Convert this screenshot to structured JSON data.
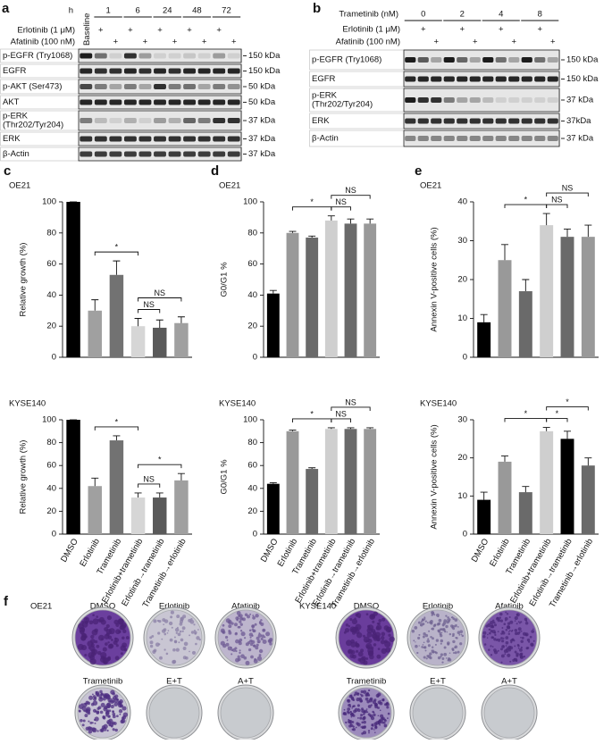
{
  "panel_labels": [
    "a",
    "b",
    "c",
    "d",
    "e",
    "f"
  ],
  "blots": [
    {
      "header": "h",
      "baseline": "Baseline",
      "groups": [
        "1",
        "6",
        "24",
        "48",
        "72"
      ],
      "treatments": [
        {
          "name": "Erlotinib (1 μM)",
          "lanes": [
            null,
            "+",
            null,
            "+",
            null,
            "+",
            null,
            "+",
            null,
            "+",
            null
          ]
        },
        {
          "name": "Afatinib (100 nM)",
          "lanes": [
            null,
            null,
            "+",
            null,
            "+",
            null,
            "+",
            null,
            "+",
            null,
            "+"
          ]
        }
      ],
      "rows": [
        {
          "name": "p-EGFR (Try1068)",
          "size": "150 kDa"
        },
        {
          "name": "EGFR",
          "size": "150 kDa"
        },
        {
          "name": "p-AKT (Ser473)",
          "size": "50 kDa"
        },
        {
          "name": "AKT",
          "size": "50 kDa"
        },
        {
          "name": [
            "p-ERK",
            "(Thr202/Tyr204)"
          ],
          "size": "37 kDa"
        },
        {
          "name": "ERK",
          "size": "37 kDa"
        },
        {
          "name": "β-Actin",
          "size": "37 kDa"
        }
      ]
    },
    {
      "header": "Trametinib (nM)",
      "groups": [
        "0",
        "2",
        "4",
        "8"
      ],
      "treatments": [
        {
          "name": "Erlotinib (1 μM)",
          "lanes": [
            null,
            "+",
            null,
            null,
            "+",
            null,
            null,
            "+",
            null,
            null,
            "+",
            null
          ]
        },
        {
          "name": "Afatinib (100 nM)",
          "lanes": [
            null,
            null,
            "+",
            null,
            null,
            "+",
            null,
            null,
            "+",
            null,
            null,
            "+"
          ]
        }
      ],
      "rows": [
        {
          "name": "p-EGFR (Try1068)",
          "size": "150 kDa"
        },
        {
          "name": "EGFR",
          "size": "150 kDa"
        },
        {
          "name": [
            "p-ERK",
            "(Thr202/Tyr204)"
          ],
          "size": "37 kDa"
        },
        {
          "name": "ERK",
          "size": "37kDa"
        },
        {
          "name": "β-Actin",
          "size": "37 kDa"
        }
      ]
    }
  ],
  "chart_data": [
    {
      "type": "bar",
      "title": "OE21",
      "ylabel": "Relative growth (%)",
      "categories": [
        null,
        null,
        null,
        null,
        null,
        null
      ],
      "values": [
        100,
        30,
        53,
        20,
        19,
        22
      ],
      "errors": [
        0,
        7,
        9,
        5,
        5,
        4
      ],
      "colors": [
        "#000000",
        "#a0a0a0",
        "#727272",
        "#d6d6d6",
        "#5a5a5a",
        "#a0a0a0"
      ],
      "ylim": [
        0,
        100
      ],
      "yticks": [
        0,
        20,
        40,
        60,
        80,
        100
      ],
      "annotations": [
        {
          "text": "*",
          "from": 1,
          "to": 3
        },
        {
          "text": "NS",
          "from": 3,
          "to": 5
        },
        {
          "text": "NS",
          "from": 3,
          "to": 4
        }
      ]
    },
    {
      "type": "bar",
      "title": "KYSE140",
      "ylabel": "Relative growth (%)",
      "categories": [
        "DMSO",
        "Erlotinib",
        "Trametinib",
        "Erlotinib+trametinib",
        "Erlotinib→trametinib",
        "Trametinib→erlotinib"
      ],
      "values": [
        100,
        42,
        82,
        32,
        32,
        47
      ],
      "errors": [
        0,
        7,
        4,
        4,
        4,
        6
      ],
      "colors": [
        "#000000",
        "#a0a0a0",
        "#727272",
        "#d6d6d6",
        "#5a5a5a",
        "#a0a0a0"
      ],
      "ylim": [
        0,
        100
      ],
      "yticks": [
        0,
        20,
        40,
        60,
        80,
        100
      ],
      "annotations": [
        {
          "text": "*",
          "from": 1,
          "to": 3
        },
        {
          "text": "NS",
          "from": 3,
          "to": 4
        },
        {
          "text": "*",
          "from": 3,
          "to": 5
        }
      ]
    },
    {
      "type": "bar",
      "title": "OE21",
      "ylabel": "G0/G1 %",
      "categories": [
        null,
        null,
        null,
        null,
        null,
        null
      ],
      "values": [
        41,
        80,
        77,
        88,
        86,
        86
      ],
      "errors": [
        2,
        1,
        1,
        3,
        3,
        3
      ],
      "colors": [
        "#000000",
        "#999999",
        "#6a6a6a",
        "#cfcfcf",
        "#6a6a6a",
        "#999999"
      ],
      "ylim": [
        0,
        100
      ],
      "yticks": [
        0,
        20,
        40,
        60,
        80,
        100
      ],
      "annotations": [
        {
          "text": "*",
          "from": 1,
          "to": 3
        },
        {
          "text": "NS",
          "from": 3,
          "to": 5
        },
        {
          "text": "NS",
          "from": 3,
          "to": 4
        }
      ]
    },
    {
      "type": "bar",
      "title": "KYSE140",
      "ylabel": "G0/G1 %",
      "categories": [
        "DMSO",
        "Erlotinib",
        "Trametinib",
        "Erlotinib+trametinib",
        "Erlotinib→trametinib",
        "Trametinib→erlotinib"
      ],
      "values": [
        44,
        90,
        57,
        92,
        92,
        92
      ],
      "errors": [
        1,
        1,
        1,
        1,
        1,
        1
      ],
      "colors": [
        "#000000",
        "#999999",
        "#6a6a6a",
        "#cfcfcf",
        "#6a6a6a",
        "#999999"
      ],
      "ylim": [
        0,
        100
      ],
      "yticks": [
        0,
        20,
        40,
        60,
        80,
        100
      ],
      "annotations": [
        {
          "text": "*",
          "from": 1,
          "to": 3
        },
        {
          "text": "NS",
          "from": 3,
          "to": 5
        },
        {
          "text": "NS",
          "from": 3,
          "to": 4
        }
      ]
    },
    {
      "type": "bar",
      "title": "OE21",
      "ylabel": "Annexin V-positive cells (%)",
      "categories": [
        null,
        null,
        null,
        null,
        null,
        null
      ],
      "values": [
        9,
        25,
        17,
        34,
        31,
        31
      ],
      "errors": [
        2,
        4,
        3,
        3,
        2,
        3
      ],
      "colors": [
        "#000000",
        "#999999",
        "#6a6a6a",
        "#cfcfcf",
        "#6a6a6a",
        "#999999"
      ],
      "ylim": [
        0,
        40
      ],
      "yticks": [
        0,
        10,
        20,
        30,
        40
      ],
      "annotations": [
        {
          "text": "*",
          "from": 1,
          "to": 3
        },
        {
          "text": "NS",
          "from": 3,
          "to": 5
        },
        {
          "text": "NS",
          "from": 3,
          "to": 4
        }
      ]
    },
    {
      "type": "bar",
      "title": "KYSE140",
      "ylabel": "Annexin V-positive cells (%)",
      "categories": [
        "DMSO",
        "Erlotinib",
        "Trametinib",
        "Erlotinib+trametinib",
        "Erlotinib→trametinib",
        "Trametinib→erlotinib"
      ],
      "values": [
        9,
        19,
        11,
        27,
        25,
        18
      ],
      "errors": [
        2,
        1.5,
        1.5,
        1,
        2,
        2
      ],
      "colors": [
        "#000000",
        "#999999",
        "#6a6a6a",
        "#cfcfcf",
        "#000000",
        "#6a6a6a"
      ],
      "ylim": [
        0,
        30
      ],
      "yticks": [
        0,
        10,
        20,
        30
      ],
      "annotations": [
        {
          "text": "*",
          "from": 1,
          "to": 3
        },
        {
          "text": "*",
          "from": 3,
          "to": 5
        },
        {
          "text": "*",
          "from": 3,
          "to": 4
        }
      ]
    }
  ],
  "plates": [
    {
      "cell_line": "OE21",
      "labels": [
        "DMSO",
        "Erlotinib",
        "Afatinib",
        "Trametinib",
        "E+T",
        "A+T"
      ]
    },
    {
      "cell_line": "KYSE140",
      "labels": [
        "DMSO",
        "Erlotinib",
        "Afatinib",
        "Trametinib",
        "E+T",
        "A+T"
      ]
    }
  ]
}
